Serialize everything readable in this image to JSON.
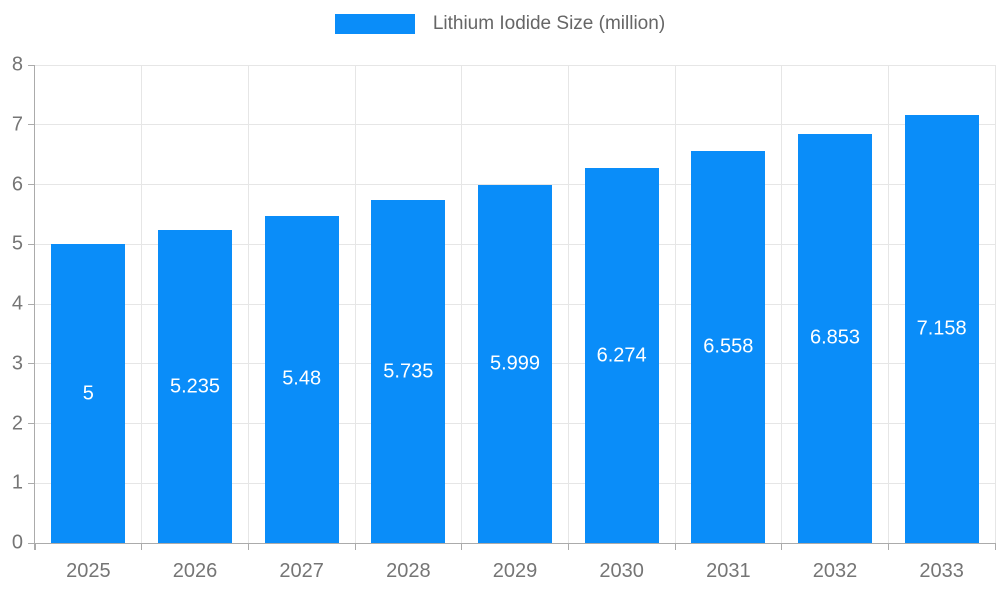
{
  "chart_data": {
    "type": "bar",
    "title": "",
    "legend": "Lithium Iodide Size (million)",
    "legend_position": "top-center",
    "categories": [
      "2025",
      "2026",
      "2027",
      "2028",
      "2029",
      "2030",
      "2031",
      "2032",
      "2033"
    ],
    "values": [
      5,
      5.235,
      5.48,
      5.735,
      5.999,
      6.274,
      6.558,
      6.853,
      7.158
    ],
    "value_labels": [
      "5",
      "5.235",
      "5.48",
      "5.735",
      "5.999",
      "6.274",
      "6.558",
      "6.853",
      "7.158"
    ],
    "xlabel": "",
    "ylabel": "",
    "ylim": [
      0,
      8
    ],
    "yticks": [
      0,
      1,
      2,
      3,
      4,
      5,
      6,
      7,
      8
    ],
    "grid": true,
    "colors": {
      "bar": "#0a8df9",
      "grid": "#e6e6e6",
      "axis": "#ababab",
      "tick_label": "#757575",
      "legend_text": "#666666",
      "value_label": "#ffffff"
    }
  }
}
